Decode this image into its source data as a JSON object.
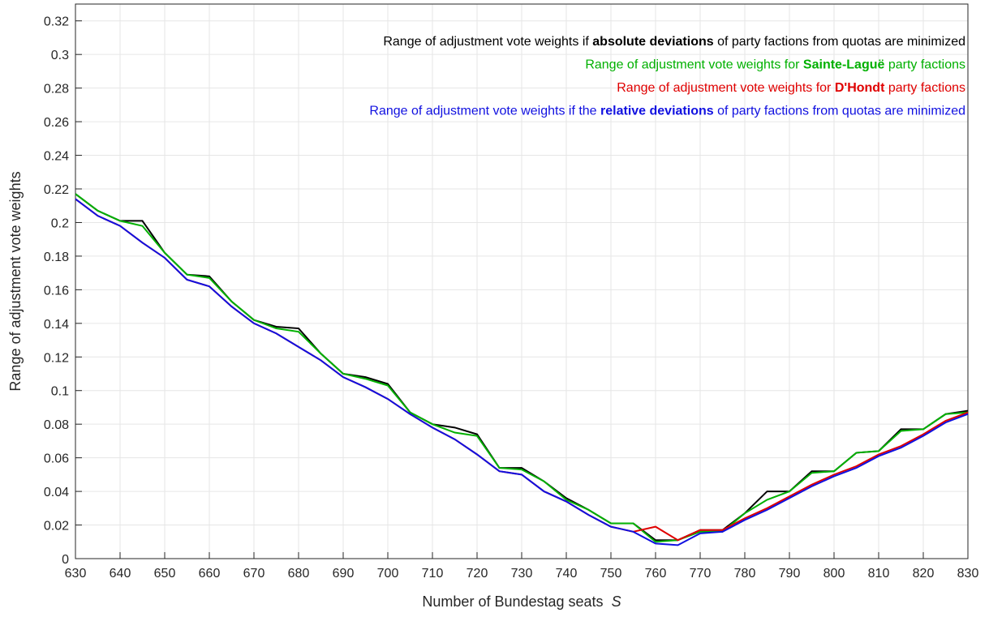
{
  "chart_data": {
    "type": "line",
    "xlabel": [
      {
        "text": "Number of Bundestag seats  ",
        "italic": false
      },
      {
        "text": "S",
        "italic": true
      }
    ],
    "ylabel": "Range of adjustment vote weights",
    "x": [
      630,
      635,
      640,
      645,
      650,
      655,
      660,
      665,
      670,
      675,
      680,
      685,
      690,
      695,
      700,
      705,
      710,
      715,
      720,
      725,
      730,
      735,
      740,
      745,
      750,
      755,
      760,
      765,
      770,
      775,
      780,
      785,
      790,
      795,
      800,
      805,
      810,
      815,
      820,
      825,
      830
    ],
    "series": [
      {
        "name": [
          {
            "text": "Range of adjustment vote weights if ",
            "bold": false
          },
          {
            "text": "absolute deviations",
            "bold": true
          },
          {
            "text": " of party factions from quotas are minimized",
            "bold": false
          }
        ],
        "color": "#000000",
        "values": [
          0.217,
          0.207,
          0.201,
          0.201,
          0.182,
          0.169,
          0.168,
          0.153,
          0.142,
          0.138,
          0.137,
          0.122,
          0.11,
          0.108,
          0.104,
          0.087,
          0.08,
          0.078,
          0.074,
          0.054,
          0.054,
          0.046,
          0.036,
          0.029,
          0.021,
          0.021,
          0.011,
          0.011,
          0.017,
          0.017,
          0.027,
          0.04,
          0.04,
          0.052,
          0.052,
          0.063,
          0.064,
          0.077,
          0.077,
          0.086,
          0.088
        ]
      },
      {
        "name": [
          {
            "text": "Range of adjustment vote weights for ",
            "bold": false
          },
          {
            "text": "Sainte-Laguë",
            "bold": true
          },
          {
            "text": " party factions",
            "bold": false
          }
        ],
        "color": "#00b000",
        "values": [
          0.217,
          0.207,
          0.201,
          0.198,
          0.182,
          0.169,
          0.167,
          0.153,
          0.142,
          0.137,
          0.135,
          0.122,
          0.11,
          0.107,
          0.103,
          0.087,
          0.08,
          0.075,
          0.073,
          0.054,
          0.053,
          0.046,
          0.035,
          0.029,
          0.021,
          0.021,
          0.01,
          0.011,
          0.016,
          0.016,
          0.027,
          0.035,
          0.04,
          0.051,
          0.052,
          0.063,
          0.064,
          0.076,
          0.077,
          0.086,
          0.087
        ]
      },
      {
        "name": [
          {
            "text": "Range of adjustment vote weights for ",
            "bold": false
          },
          {
            "text": "D'Hondt",
            "bold": true
          },
          {
            "text": " party factions",
            "bold": false
          }
        ],
        "color": "#e00000",
        "values": [
          0.214,
          0.204,
          0.198,
          0.188,
          0.179,
          0.166,
          0.162,
          0.15,
          0.14,
          0.134,
          0.126,
          0.118,
          0.108,
          0.102,
          0.095,
          0.086,
          0.078,
          0.071,
          0.062,
          0.052,
          0.05,
          0.04,
          0.034,
          0.026,
          0.019,
          0.016,
          0.019,
          0.011,
          0.017,
          0.017,
          0.024,
          0.03,
          0.037,
          0.044,
          0.05,
          0.055,
          0.062,
          0.067,
          0.074,
          0.082,
          0.087
        ]
      },
      {
        "name": [
          {
            "text": "Range of adjustment vote weights if the ",
            "bold": false
          },
          {
            "text": "relative deviations",
            "bold": true
          },
          {
            "text": " of party factions from quotas are minimized",
            "bold": false
          }
        ],
        "color": "#1010e0",
        "values": [
          0.214,
          0.204,
          0.198,
          0.188,
          0.179,
          0.166,
          0.162,
          0.15,
          0.14,
          0.134,
          0.126,
          0.118,
          0.108,
          0.102,
          0.095,
          0.086,
          0.078,
          0.071,
          0.062,
          0.052,
          0.05,
          0.04,
          0.034,
          0.026,
          0.019,
          0.016,
          0.009,
          0.008,
          0.015,
          0.016,
          0.023,
          0.029,
          0.036,
          0.043,
          0.049,
          0.054,
          0.061,
          0.066,
          0.073,
          0.081,
          0.086
        ]
      }
    ],
    "xlim": [
      630,
      830
    ],
    "xticks": [
      630,
      640,
      650,
      660,
      670,
      680,
      690,
      700,
      710,
      720,
      730,
      740,
      750,
      760,
      770,
      780,
      790,
      800,
      810,
      820,
      830
    ],
    "ylim": [
      0,
      0.33
    ],
    "yticks": [
      0,
      0.02,
      0.04,
      0.06,
      0.08,
      0.1,
      0.12,
      0.14,
      0.16,
      0.18,
      0.2,
      0.22,
      0.24,
      0.26,
      0.28,
      0.3,
      0.32
    ],
    "grid": true,
    "legend": "upper right"
  }
}
